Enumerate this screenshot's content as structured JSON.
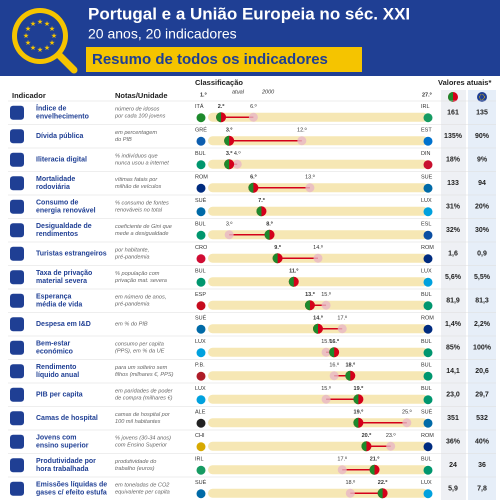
{
  "header": {
    "title": "Portugal e a União Europeia no séc. XXI",
    "subtitle": "20 anos, 20 indicadores",
    "section": "Resumo de todos os indicadores"
  },
  "columns": {
    "indicator": "Indicador",
    "notes": "Notas/Unidade",
    "rank": "Classificação",
    "values": "Valores atuais*",
    "first": "1.º",
    "last": "27.º",
    "now": "atual",
    "was": "2000"
  },
  "rows": [
    {
      "indicator": [
        "Índice de",
        "envelhecimento"
      ],
      "notes": [
        "número de idosos",
        "por cada 100 jovens"
      ],
      "best": "ITÁ",
      "worst": "IRL",
      "now": {
        "value": 2,
        "label": "2.º"
      },
      "was": {
        "value": 6,
        "label": "6.º"
      },
      "pt": "161",
      "eu": "135"
    },
    {
      "indicator": [
        "Dívida pública"
      ],
      "notes": [
        "em percentagem",
        "do PIB"
      ],
      "best": "GRÉ",
      "worst": "EST",
      "now": {
        "value": 3,
        "label": "3.º"
      },
      "was": {
        "value": 12,
        "label": "12.º"
      },
      "pt": "135%",
      "eu": "90%"
    },
    {
      "indicator": [
        "Iliteracia digital"
      ],
      "notes": [
        "% indivíduos que",
        "nunca usou a internet"
      ],
      "best": "BUL",
      "worst": "DIN",
      "now": {
        "value": 3,
        "label": "3.º"
      },
      "was": {
        "value": 4,
        "label": "4.º"
      },
      "pt": "18%",
      "eu": "9%"
    },
    {
      "indicator": [
        "Mortalidade",
        "rodoviária"
      ],
      "notes": [
        "vítimas fatais por",
        "milhão de veículos"
      ],
      "best": "ROM",
      "worst": "SUE",
      "now": {
        "value": 6,
        "label": "6.º"
      },
      "was": {
        "value": 13,
        "label": "13.º"
      },
      "pt": "133",
      "eu": "94"
    },
    {
      "indicator": [
        "Consumo de",
        "energia renovável"
      ],
      "notes": [
        "% consumo de fontes",
        "renováveis no total"
      ],
      "best": "SUÉ",
      "worst": "LUX",
      "now": {
        "value": 7,
        "label": "7.º"
      },
      "was": null,
      "pt": "31%",
      "eu": "20%"
    },
    {
      "indicator": [
        "Desigualdade de",
        "rendimentos"
      ],
      "notes": [
        "coeficiente de Gini que",
        "mede a desigualdade"
      ],
      "best": "BUL",
      "worst": "ESL",
      "now": {
        "value": 8,
        "label": "8.º"
      },
      "was": {
        "value": 3,
        "label": "3.º"
      },
      "pt": "32%",
      "eu": "30%"
    },
    {
      "indicator": [
        "Turistas estrangeiros"
      ],
      "notes": [
        "por habitante,",
        "pré-pandemia"
      ],
      "best": "CRO",
      "worst": "ROM",
      "now": {
        "value": 9,
        "label": "9.º"
      },
      "was": {
        "value": 14,
        "label": "14.º"
      },
      "pt": "1,6",
      "eu": "0,9"
    },
    {
      "indicator": [
        "Taxa de privação",
        "material severa"
      ],
      "notes": [
        "% população com",
        "privação mat. severa"
      ],
      "best": "BUL",
      "worst": "LUX",
      "now": {
        "value": 11,
        "label": "11.º"
      },
      "was": null,
      "pt": "5,6%",
      "eu": "5,5%"
    },
    {
      "indicator": [
        "Esperança",
        "média de vida"
      ],
      "notes": [
        "em número de anos,",
        "pré-pandemia"
      ],
      "best": "ESP",
      "worst": "BUL",
      "now": {
        "value": 13,
        "label": "13.º"
      },
      "was": {
        "value": 15,
        "label": "15.º"
      },
      "pt": "81,9",
      "eu": "81,3"
    },
    {
      "indicator": [
        "Despesa em I&D"
      ],
      "notes": [
        "em % do PIB"
      ],
      "best": "SUÉ",
      "worst": "ROM",
      "now": {
        "value": 14,
        "label": "14.º"
      },
      "was": {
        "value": 17,
        "label": "17.º"
      },
      "pt": "1,4%",
      "eu": "2,2%"
    },
    {
      "indicator": [
        "Bem-estar",
        "económico"
      ],
      "notes": [
        "consumo per capita",
        "(PPS), em % da UE"
      ],
      "best": "LUX",
      "worst": "BUL",
      "now": {
        "value": 16,
        "label": "16.º"
      },
      "was": {
        "value": 15,
        "label": "15.º"
      },
      "pt": "85%",
      "eu": "100%"
    },
    {
      "indicator": [
        "Rendimento",
        "líquido anual"
      ],
      "notes": [
        "para um solteiro sem",
        "filhos (milhares €, PPS)"
      ],
      "best": "P.B.",
      "worst": "BUL",
      "now": {
        "value": 18,
        "label": "18.º"
      },
      "was": {
        "value": 16,
        "label": "16.º"
      },
      "pt": "14,1",
      "eu": "20,6"
    },
    {
      "indicator": [
        "PIB per capita"
      ],
      "notes": [
        "em paridades de poder",
        "de compra (milhares €)"
      ],
      "best": "LUX",
      "worst": "BUL",
      "now": {
        "value": 19,
        "label": "19.º"
      },
      "was": {
        "value": 15,
        "label": "15.º"
      },
      "pt": "23,0",
      "eu": "29,7"
    },
    {
      "indicator": [
        "Camas de hospital"
      ],
      "notes": [
        "camas de hospital por",
        "100 mil habitantes"
      ],
      "best": "ALE",
      "worst": "SUÉ",
      "now": {
        "value": 19,
        "label": "19.º"
      },
      "was": {
        "value": 25,
        "label": "25.º"
      },
      "pt": "351",
      "eu": "532"
    },
    {
      "indicator": [
        "Jovens com",
        "ensino superior"
      ],
      "notes": [
        "% jovens (30-34 anos)",
        "com Ensino Superior"
      ],
      "best": "CHI",
      "worst": "ROM",
      "now": {
        "value": 20,
        "label": "20.º"
      },
      "was": {
        "value": 23,
        "label": "23.º"
      },
      "pt": "36%",
      "eu": "40%"
    },
    {
      "indicator": [
        "Produtividade por",
        "hora trabalhada"
      ],
      "notes": [
        "produtividade do",
        "trabalho (euros)"
      ],
      "best": "IRL",
      "worst": "BUL",
      "now": {
        "value": 21,
        "label": "21.º"
      },
      "was": {
        "value": 17,
        "label": "17.º"
      },
      "pt": "24",
      "eu": "36"
    },
    {
      "indicator": [
        "Emissões líquidas de",
        "gases c/ efeito estufa"
      ],
      "notes": [
        "em toneladas de CO2",
        "equivalente per capita"
      ],
      "best": "SUÉ",
      "worst": "LUX",
      "now": {
        "value": 22,
        "label": "22.º"
      },
      "was": {
        "value": 18,
        "label": "18.º"
      },
      "pt": "5,9",
      "eu": "7,8"
    }
  ]
}
